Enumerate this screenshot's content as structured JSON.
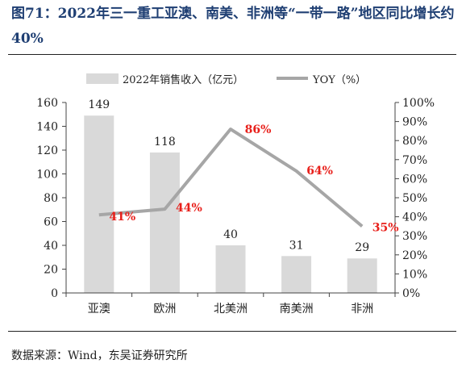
{
  "title": "图71：2022年三一重工亚澳、南美、非洲等“一带一路”地区同比增长约40%",
  "source": "数据来源：Wind，东吴证券研究所",
  "colors": {
    "title": "#1f3f73",
    "bar": "#d9d9d9",
    "line": "#a6a6a6",
    "yoy_label": "#e8201b",
    "text": "#222222"
  },
  "chart_data": {
    "type": "bar",
    "categories": [
      "亚澳",
      "欧洲",
      "北美洲",
      "南美洲",
      "非洲"
    ],
    "series": [
      {
        "name": "2022年销售收入（亿元）",
        "type": "bar",
        "axis": "left",
        "values": [
          149,
          118,
          40,
          31,
          29
        ],
        "labels": [
          "149",
          "118",
          "40",
          "31",
          "29"
        ]
      },
      {
        "name": "YOY（%）",
        "type": "line",
        "axis": "right",
        "values": [
          41,
          44,
          86,
          64,
          35
        ],
        "labels": [
          "41%",
          "44%",
          "86%",
          "64%",
          "35%"
        ]
      }
    ],
    "y_left": {
      "min": 0,
      "max": 160,
      "ticks": [
        "0",
        "20",
        "40",
        "60",
        "80",
        "100",
        "120",
        "140",
        "160"
      ]
    },
    "y_right": {
      "min": 0,
      "max": 100,
      "ticks": [
        "0%",
        "10%",
        "20%",
        "30%",
        "40%",
        "50%",
        "60%",
        "70%",
        "80%",
        "90%",
        "100%"
      ]
    },
    "legend_position": "top",
    "grid": false
  }
}
